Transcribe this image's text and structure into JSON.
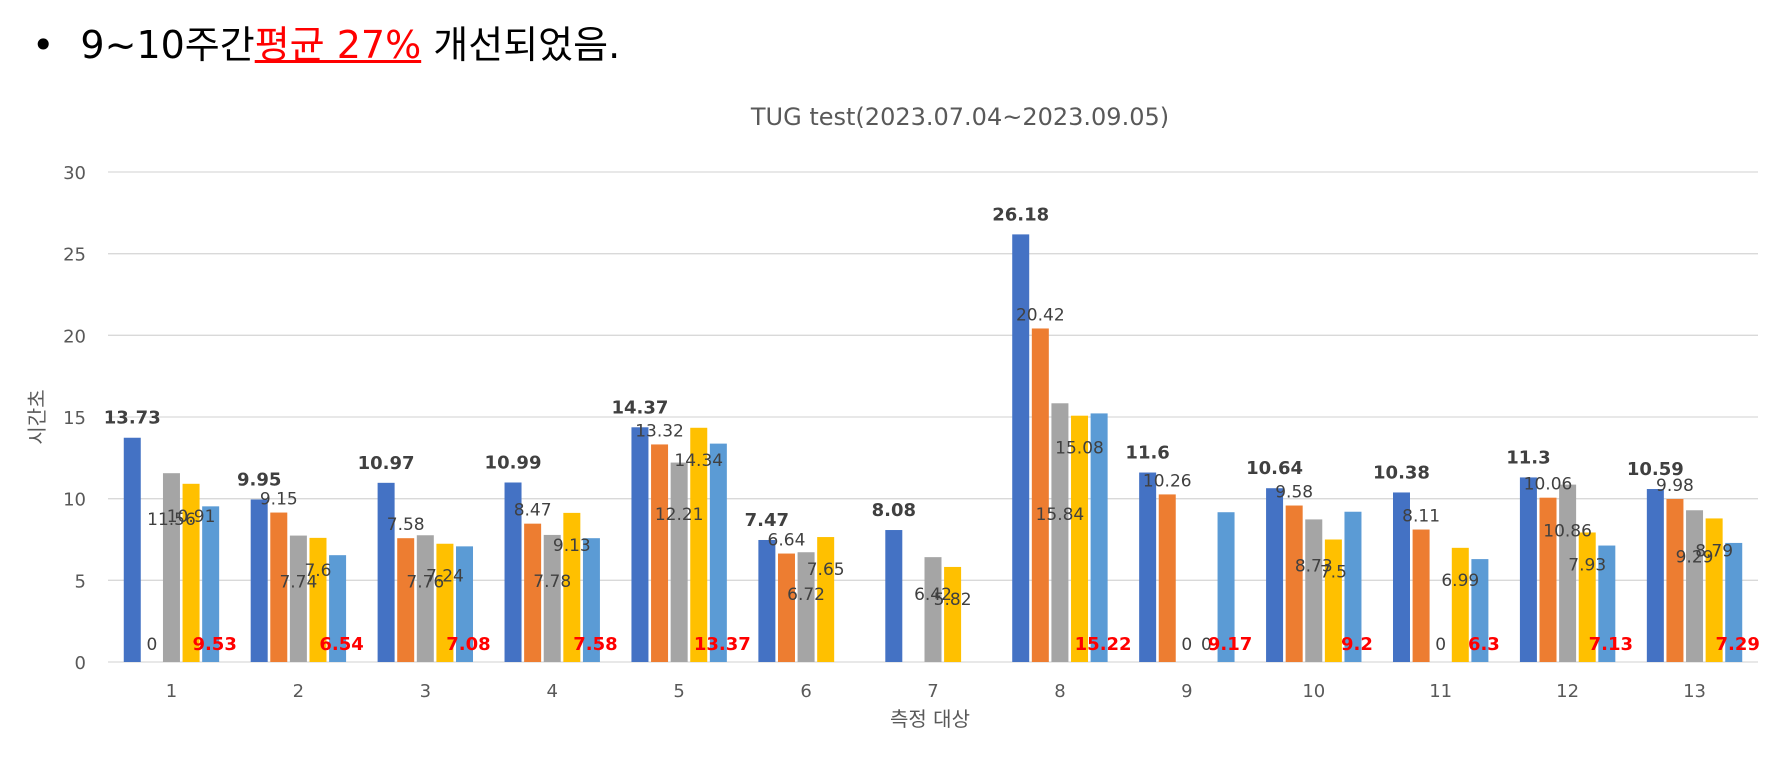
{
  "header": {
    "bullet": "•",
    "before": "9~10주간",
    "highlight": "평균 27%",
    "after": "개선되었음."
  },
  "colors": {
    "series": [
      "#4472c4",
      "#ed7d31",
      "#a5a5a5",
      "#ffc000",
      "#5b9bd5"
    ],
    "gridline": "#d9d9d9",
    "axis_text": "#595959",
    "label_text": "#404040",
    "highlight_text": "#ff0000"
  },
  "chart_data": {
    "type": "bar",
    "title": "TUG  test(2023.07.04~2023.09.05)",
    "xlabel": "측정 대상",
    "ylabel": "시간초",
    "ylim": [
      0,
      30
    ],
    "yticks": [
      0,
      5,
      10,
      15,
      20,
      25,
      30
    ],
    "grid": true,
    "categories": [
      "1",
      "2",
      "3",
      "4",
      "5",
      "6",
      "7",
      "8",
      "9",
      "10",
      "11",
      "12",
      "13"
    ],
    "series": [
      {
        "values": [
          13.73,
          9.95,
          10.97,
          10.99,
          14.37,
          7.47,
          8.08,
          26.18,
          11.6,
          10.64,
          10.38,
          11.3,
          10.59
        ],
        "label_style": "bold"
      },
      {
        "values": [
          0,
          9.15,
          7.58,
          8.47,
          13.32,
          6.64,
          null,
          20.42,
          10.26,
          9.58,
          8.11,
          10.06,
          9.98
        ],
        "label_style": "normal"
      },
      {
        "values": [
          11.56,
          7.74,
          7.76,
          7.78,
          12.21,
          6.72,
          6.42,
          15.84,
          0,
          8.73,
          0,
          10.86,
          9.29
        ],
        "label_style": "normal"
      },
      {
        "values": [
          10.91,
          7.6,
          7.24,
          9.13,
          14.34,
          7.65,
          5.82,
          15.08,
          0,
          7.5,
          6.99,
          7.93,
          8.79
        ],
        "label_style": "normal"
      },
      {
        "values": [
          9.53,
          6.54,
          7.08,
          7.58,
          13.37,
          null,
          null,
          15.22,
          9.17,
          9.2,
          6.3,
          7.13,
          7.29
        ],
        "label_style": "bold-red"
      }
    ]
  }
}
